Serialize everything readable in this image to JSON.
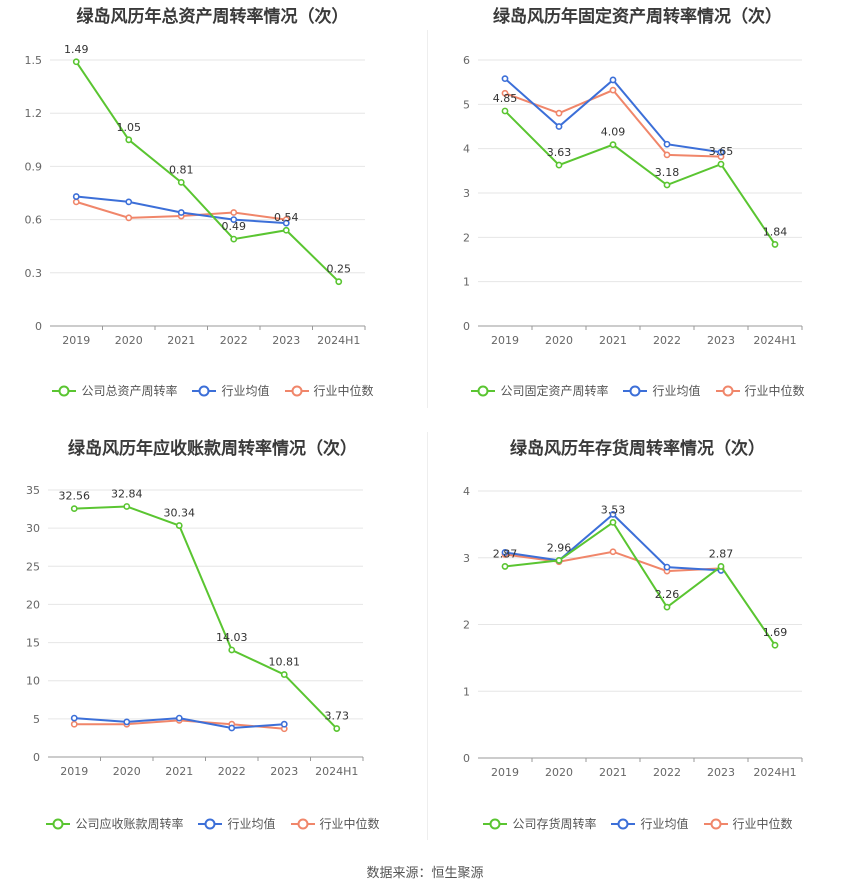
{
  "colors": {
    "company": "#5ac531",
    "avg": "#3c6fd8",
    "median": "#f0866a",
    "grid": "#e6e6e6",
    "axis": "#999999"
  },
  "footer": "数据来源：恒生聚源",
  "legend_icon": "circle-line-icon",
  "chart_data": [
    {
      "type": "line",
      "title": "绿岛风历年总资产周转率情况（次）",
      "categories": [
        "2019",
        "2020",
        "2021",
        "2022",
        "2023",
        "2024H1"
      ],
      "yticks": [
        "0",
        "0.3",
        "0.6",
        "0.9",
        "1.2",
        "1.5"
      ],
      "ylim": [
        0,
        1.5
      ],
      "series": [
        {
          "name": "公司总资产周转率",
          "values": [
            1.49,
            1.05,
            0.81,
            0.49,
            0.54,
            0.25
          ],
          "labels": [
            "1.49",
            "1.05",
            "0.81",
            "0.49",
            "0.54",
            "0.25"
          ]
        },
        {
          "name": "行业均值",
          "values": [
            0.73,
            0.7,
            0.64,
            0.6,
            0.58,
            null
          ]
        },
        {
          "name": "行业中位数",
          "values": [
            0.7,
            0.61,
            0.62,
            0.64,
            0.6,
            null
          ]
        }
      ]
    },
    {
      "type": "line",
      "title": "绿岛风历年固定资产周转率情况（次）",
      "categories": [
        "2019",
        "2020",
        "2021",
        "2022",
        "2023",
        "2024H1"
      ],
      "yticks": [
        "0",
        "1",
        "2",
        "3",
        "4",
        "5",
        "6"
      ],
      "ylim": [
        0,
        6
      ],
      "series": [
        {
          "name": "公司固定资产周转率",
          "values": [
            4.85,
            3.63,
            4.09,
            3.18,
            3.65,
            1.84
          ],
          "labels": [
            "4.85",
            "3.63",
            "4.09",
            "3.18",
            "3.65",
            "1.84"
          ]
        },
        {
          "name": "行业均值",
          "values": [
            5.58,
            4.5,
            5.55,
            4.1,
            3.92,
            null
          ]
        },
        {
          "name": "行业中位数",
          "values": [
            5.25,
            4.8,
            5.32,
            3.86,
            3.82,
            null
          ]
        }
      ]
    },
    {
      "type": "line",
      "title": "绿岛风历年应收账款周转率情况（次）",
      "categories": [
        "2019",
        "2020",
        "2021",
        "2022",
        "2023",
        "2024H1"
      ],
      "yticks": [
        "0",
        "5",
        "10",
        "15",
        "20",
        "25",
        "30",
        "35"
      ],
      "ylim": [
        0,
        35
      ],
      "series": [
        {
          "name": "公司应收账款周转率",
          "values": [
            32.56,
            32.84,
            30.34,
            14.03,
            10.81,
            3.73
          ],
          "labels": [
            "32.56",
            "32.84",
            "30.34",
            "14.03",
            "10.81",
            "3.73"
          ]
        },
        {
          "name": "行业均值",
          "values": [
            5.1,
            4.6,
            5.1,
            3.8,
            4.3,
            null
          ]
        },
        {
          "name": "行业中位数",
          "values": [
            4.3,
            4.3,
            4.8,
            4.3,
            3.7,
            null
          ]
        }
      ]
    },
    {
      "type": "line",
      "title": "绿岛风历年存货周转率情况（次）",
      "categories": [
        "2019",
        "2020",
        "2021",
        "2022",
        "2023",
        "2024H1"
      ],
      "yticks": [
        "0",
        "1",
        "2",
        "3",
        "4"
      ],
      "ylim": [
        0,
        4
      ],
      "series": [
        {
          "name": "公司存货周转率",
          "values": [
            2.87,
            2.96,
            3.53,
            2.26,
            2.87,
            1.69
          ],
          "labels": [
            "2.87",
            "2.96",
            "3.53",
            "2.26",
            "2.87",
            "1.69"
          ]
        },
        {
          "name": "行业均值",
          "values": [
            3.08,
            2.96,
            3.65,
            2.86,
            2.81,
            null
          ]
        },
        {
          "name": "行业中位数",
          "values": [
            3.05,
            2.94,
            3.09,
            2.8,
            2.84,
            null
          ]
        }
      ]
    }
  ]
}
